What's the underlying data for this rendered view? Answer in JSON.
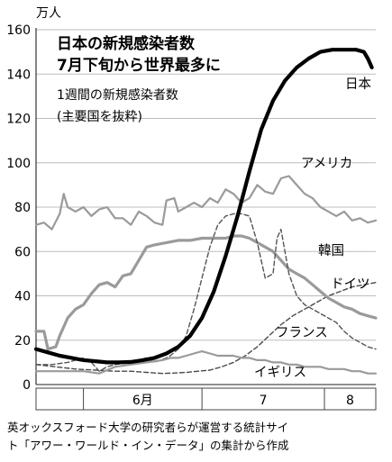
{
  "chart_data": {
    "type": "line",
    "title_lines": [
      "日本の新規感染者数",
      "7月下旬から世界最多に"
    ],
    "subtitle_lines": [
      "1週間の新規感染者数",
      "(主要国を抜粋)"
    ],
    "unit_label": "万人",
    "ylim": [
      0,
      160
    ],
    "y_ticks": [
      "0",
      "20",
      "40",
      "60",
      "80",
      "100",
      "120",
      "140",
      "160"
    ],
    "month_labels": [
      "6月",
      "7",
      "8"
    ],
    "x_domain": [
      0,
      86
    ],
    "x_note": "x = days from May 20, 2022",
    "month_boundaries": [
      12,
      42,
      73
    ],
    "grid": true,
    "source_lines": [
      "英オックスフォード大学の研究者らが運営する統計サイ",
      "ト「アワー・ワールド・イン・データ」の集計から作成"
    ],
    "series": [
      {
        "name": "アメリカ",
        "color": "#9a9a9a",
        "style": "gray-thin",
        "points": [
          [
            0,
            72
          ],
          [
            2,
            73
          ],
          [
            4,
            70
          ],
          [
            6,
            77
          ],
          [
            7,
            86
          ],
          [
            8,
            80
          ],
          [
            10,
            78
          ],
          [
            12,
            80
          ],
          [
            14,
            76
          ],
          [
            16,
            79
          ],
          [
            18,
            80
          ],
          [
            20,
            75
          ],
          [
            22,
            75
          ],
          [
            24,
            72
          ],
          [
            26,
            78
          ],
          [
            28,
            76
          ],
          [
            30,
            73
          ],
          [
            32,
            72
          ],
          [
            33,
            83
          ],
          [
            35,
            84
          ],
          [
            36,
            78
          ],
          [
            38,
            80
          ],
          [
            40,
            82
          ],
          [
            42,
            80
          ],
          [
            44,
            84
          ],
          [
            46,
            82
          ],
          [
            48,
            88
          ],
          [
            50,
            86
          ],
          [
            52,
            82
          ],
          [
            54,
            84
          ],
          [
            56,
            90
          ],
          [
            58,
            87
          ],
          [
            60,
            86
          ],
          [
            62,
            93
          ],
          [
            64,
            94
          ],
          [
            66,
            90
          ],
          [
            68,
            86
          ],
          [
            70,
            84
          ],
          [
            72,
            80
          ],
          [
            74,
            78
          ],
          [
            76,
            76
          ],
          [
            78,
            78
          ],
          [
            80,
            74
          ],
          [
            82,
            75
          ],
          [
            84,
            73
          ],
          [
            86,
            74
          ]
        ]
      },
      {
        "name": "韓国",
        "color": "#4a4a4a",
        "style": "dashed",
        "points": [
          [
            0,
            9
          ],
          [
            5,
            8
          ],
          [
            10,
            7
          ],
          [
            15,
            6.5
          ],
          [
            20,
            6
          ],
          [
            24,
            6
          ],
          [
            28,
            5.5
          ],
          [
            32,
            5
          ],
          [
            35,
            5.2
          ],
          [
            38,
            5.5
          ],
          [
            41,
            6
          ],
          [
            44,
            6.5
          ],
          [
            47,
            8
          ],
          [
            50,
            10
          ],
          [
            53,
            13
          ],
          [
            56,
            17
          ],
          [
            59,
            22
          ],
          [
            62,
            27
          ],
          [
            65,
            31
          ],
          [
            68,
            34
          ],
          [
            71,
            37
          ],
          [
            74,
            40
          ],
          [
            77,
            42
          ],
          [
            80,
            44
          ],
          [
            83,
            45
          ],
          [
            86,
            46
          ]
        ]
      },
      {
        "name": "ドイツ",
        "color": "#9a9a9a",
        "style": "gray-thick",
        "points": [
          [
            0,
            24
          ],
          [
            2,
            24
          ],
          [
            3,
            16
          ],
          [
            5,
            17
          ],
          [
            6,
            22
          ],
          [
            8,
            30
          ],
          [
            10,
            34
          ],
          [
            12,
            36
          ],
          [
            14,
            41
          ],
          [
            16,
            45
          ],
          [
            18,
            46
          ],
          [
            20,
            44
          ],
          [
            22,
            49
          ],
          [
            24,
            50
          ],
          [
            26,
            56
          ],
          [
            28,
            62
          ],
          [
            30,
            63
          ],
          [
            33,
            64
          ],
          [
            36,
            65
          ],
          [
            39,
            65
          ],
          [
            42,
            66
          ],
          [
            45,
            66
          ],
          [
            48,
            66
          ],
          [
            50,
            67
          ],
          [
            52,
            67
          ],
          [
            54,
            66
          ],
          [
            56,
            64
          ],
          [
            58,
            62
          ],
          [
            60,
            60
          ],
          [
            62,
            56
          ],
          [
            64,
            52
          ],
          [
            66,
            50
          ],
          [
            68,
            48
          ],
          [
            70,
            45
          ],
          [
            72,
            42
          ],
          [
            74,
            39
          ],
          [
            76,
            37
          ],
          [
            78,
            35
          ],
          [
            80,
            34
          ],
          [
            82,
            32
          ],
          [
            84,
            31
          ],
          [
            86,
            30
          ]
        ]
      },
      {
        "name": "フランス",
        "color": "#555555",
        "style": "dashed",
        "points": [
          [
            0,
            9
          ],
          [
            4,
            9
          ],
          [
            8,
            10
          ],
          [
            12,
            12
          ],
          [
            14,
            10
          ],
          [
            16,
            6
          ],
          [
            18,
            8
          ],
          [
            20,
            9
          ],
          [
            24,
            10
          ],
          [
            28,
            12
          ],
          [
            30,
            10
          ],
          [
            33,
            12
          ],
          [
            34,
            13
          ],
          [
            36,
            16
          ],
          [
            38,
            22
          ],
          [
            40,
            34
          ],
          [
            42,
            48
          ],
          [
            44,
            62
          ],
          [
            46,
            72
          ],
          [
            48,
            76
          ],
          [
            50,
            77
          ],
          [
            52,
            77
          ],
          [
            54,
            76
          ],
          [
            56,
            64
          ],
          [
            58,
            48
          ],
          [
            60,
            50
          ],
          [
            61,
            66
          ],
          [
            62,
            70
          ],
          [
            63,
            60
          ],
          [
            64,
            50
          ],
          [
            66,
            40
          ],
          [
            68,
            36
          ],
          [
            70,
            34
          ],
          [
            72,
            32
          ],
          [
            74,
            30
          ],
          [
            76,
            28
          ],
          [
            78,
            24
          ],
          [
            80,
            21
          ],
          [
            82,
            19
          ],
          [
            84,
            17
          ],
          [
            86,
            16
          ]
        ]
      },
      {
        "name": "イギリス",
        "color": "#9a9a9a",
        "style": "gray-thin",
        "points": [
          [
            0,
            6
          ],
          [
            4,
            6
          ],
          [
            8,
            6
          ],
          [
            12,
            6
          ],
          [
            16,
            5
          ],
          [
            20,
            8
          ],
          [
            24,
            9
          ],
          [
            28,
            10
          ],
          [
            32,
            11
          ],
          [
            34,
            12
          ],
          [
            36,
            12
          ],
          [
            38,
            13
          ],
          [
            40,
            14
          ],
          [
            42,
            15
          ],
          [
            44,
            14
          ],
          [
            46,
            13
          ],
          [
            48,
            13
          ],
          [
            50,
            13
          ],
          [
            52,
            12
          ],
          [
            54,
            12
          ],
          [
            56,
            11
          ],
          [
            58,
            11
          ],
          [
            60,
            10
          ],
          [
            62,
            10
          ],
          [
            64,
            9
          ],
          [
            66,
            9
          ],
          [
            68,
            8
          ],
          [
            70,
            8
          ],
          [
            72,
            8
          ],
          [
            74,
            7
          ],
          [
            76,
            7
          ],
          [
            78,
            7
          ],
          [
            80,
            6
          ],
          [
            82,
            6
          ],
          [
            84,
            5
          ],
          [
            86,
            5
          ]
        ]
      },
      {
        "name": "日本",
        "color": "#000000",
        "style": "bold",
        "points": [
          [
            0,
            16
          ],
          [
            3,
            14.5
          ],
          [
            6,
            13
          ],
          [
            9,
            12
          ],
          [
            12,
            11
          ],
          [
            15,
            10.5
          ],
          [
            18,
            10
          ],
          [
            21,
            10
          ],
          [
            24,
            10.2
          ],
          [
            27,
            11
          ],
          [
            30,
            12
          ],
          [
            33,
            14
          ],
          [
            36,
            17
          ],
          [
            39,
            22
          ],
          [
            42,
            30
          ],
          [
            45,
            42
          ],
          [
            48,
            58
          ],
          [
            51,
            76
          ],
          [
            54,
            96
          ],
          [
            57,
            115
          ],
          [
            60,
            128
          ],
          [
            63,
            137
          ],
          [
            66,
            143
          ],
          [
            69,
            147
          ],
          [
            72,
            150
          ],
          [
            75,
            151
          ],
          [
            78,
            151
          ],
          [
            81,
            151
          ],
          [
            83,
            150
          ],
          [
            84,
            147
          ],
          [
            85,
            143
          ]
        ]
      }
    ]
  }
}
